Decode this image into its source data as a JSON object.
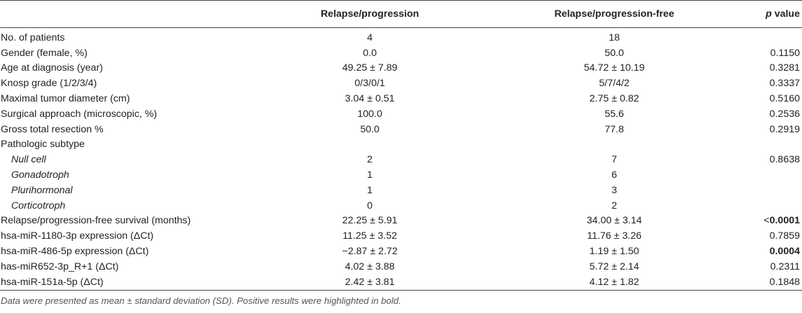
{
  "table": {
    "headers": {
      "variable": "",
      "group1": "Relapse/progression",
      "group2": "Relapse/progression-free",
      "p_italic": "p",
      "p_rest": " value"
    },
    "rows": [
      {
        "label": "No. of patients",
        "g1": "4",
        "g2": "18",
        "p": "",
        "sub": false,
        "bold_p": false
      },
      {
        "label": "Gender (female, %)",
        "g1": "0.0",
        "g2": "50.0",
        "p": "0.1150",
        "sub": false,
        "bold_p": false
      },
      {
        "label": "Age at diagnosis (year)",
        "g1": "49.25 ± 7.89",
        "g2": "54.72 ± 10.19",
        "p": "0.3281",
        "sub": false,
        "bold_p": false
      },
      {
        "label": "Knosp grade (1/2/3/4)",
        "g1": "0/3/0/1",
        "g2": "5/7/4/2",
        "p": "0.3337",
        "sub": false,
        "bold_p": false
      },
      {
        "label": "Maximal tumor diameter (cm)",
        "g1": "3.04 ± 0.51",
        "g2": "2.75 ± 0.82",
        "p": "0.5160",
        "sub": false,
        "bold_p": false
      },
      {
        "label": "Surgical approach (microscopic, %)",
        "g1": "100.0",
        "g2": "55.6",
        "p": "0.2536",
        "sub": false,
        "bold_p": false
      },
      {
        "label": "Gross total resection %",
        "g1": "50.0",
        "g2": "77.8",
        "p": "0.2919",
        "sub": false,
        "bold_p": false
      },
      {
        "label": "Pathologic subtype",
        "g1": "",
        "g2": "",
        "p": "",
        "sub": false,
        "bold_p": false
      },
      {
        "label": "Null cell",
        "g1": "2",
        "g2": "7",
        "p": "0.8638",
        "sub": true,
        "bold_p": false
      },
      {
        "label": "Gonadotroph",
        "g1": "1",
        "g2": "6",
        "p": "",
        "sub": true,
        "bold_p": false
      },
      {
        "label": "Plurihormonal",
        "g1": "1",
        "g2": "3",
        "p": "",
        "sub": true,
        "bold_p": false
      },
      {
        "label": "Corticotroph",
        "g1": "0",
        "g2": "2",
        "p": "",
        "sub": true,
        "bold_p": false
      },
      {
        "label": "Relapse/progression-free survival (months)",
        "g1": "22.25 ± 5.91",
        "g2": "34.00 ± 3.14",
        "p_prefix": "<",
        "p": "0.0001",
        "sub": false,
        "bold_p": true
      },
      {
        "label": "hsa-miR-1180-3p expression (ΔCt)",
        "g1": "11.25 ± 3.52",
        "g2": "11.76 ± 3.26",
        "p": "0.7859",
        "sub": false,
        "bold_p": false
      },
      {
        "label": "hsa-miR-486-5p expression (ΔCt)",
        "g1": "−2.87 ± 2.72",
        "g2": "1.19 ± 1.50",
        "p": "0.0004",
        "sub": false,
        "bold_p": true
      },
      {
        "label": "has-miR652-3p_R+1 (ΔCt)",
        "g1": "4.02 ± 3.88",
        "g2": "5.72 ± 2.14",
        "p": "0.2311",
        "sub": false,
        "bold_p": false
      },
      {
        "label": "hsa-miR-151a-5p (ΔCt)",
        "g1": "2.42 ± 3.81",
        "g2": "4.12 ± 1.82",
        "p": "0.1848",
        "sub": false,
        "bold_p": false
      }
    ]
  },
  "footnote": "Data were presented as mean ± standard deviation (SD). Positive results were highlighted in bold."
}
